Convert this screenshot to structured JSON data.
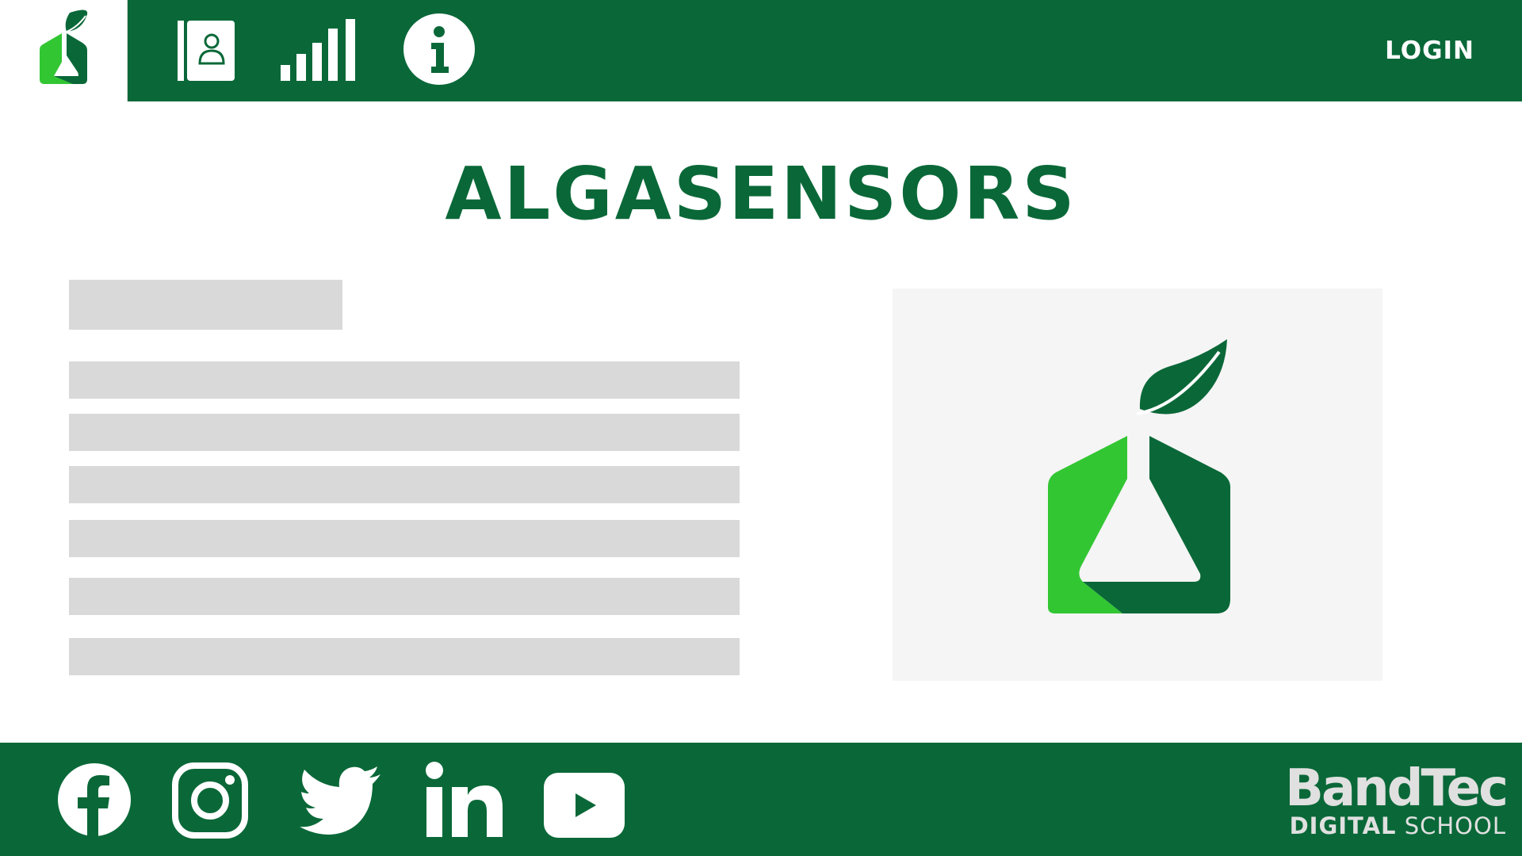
{
  "header": {
    "login_label": "LOGIN",
    "nav_items": [
      {
        "icon": "contact-book-icon"
      },
      {
        "icon": "signal-bars-icon"
      },
      {
        "icon": "info-icon"
      }
    ]
  },
  "main": {
    "title": "ALGASENSORS",
    "hero_image": "algasensors-flask-leaf-logo"
  },
  "footer": {
    "social": [
      {
        "icon": "facebook-icon"
      },
      {
        "icon": "instagram-icon"
      },
      {
        "icon": "twitter-icon"
      },
      {
        "icon": "linkedin-icon"
      },
      {
        "icon": "youtube-icon"
      }
    ],
    "brand_name": "BandTec",
    "brand_sub_bold": "DIGITAL",
    "brand_sub_light": " SCHOOL"
  },
  "colors": {
    "primary_green": "#0a6838",
    "light_green": "#33c633",
    "placeholder_gray": "#d9d9d9"
  }
}
